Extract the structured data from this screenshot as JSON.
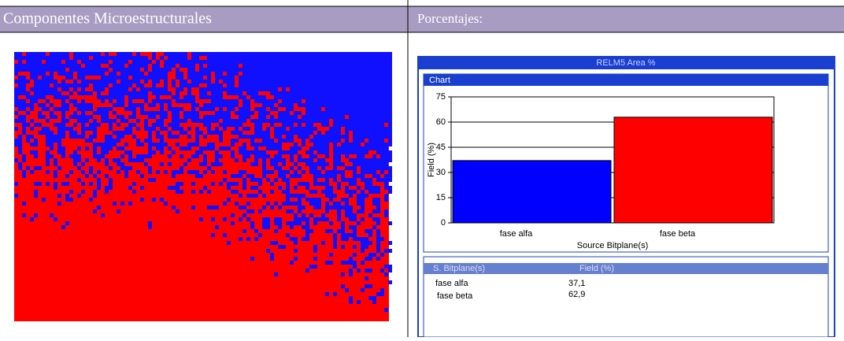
{
  "header": {
    "left": "Componentes Microestructurales",
    "right": "Porcentajes:"
  },
  "window": {
    "title": "RELM5 Area %",
    "panel": "Chart"
  },
  "chart_data": {
    "type": "bar",
    "categories": [
      "fase alfa",
      "fase beta"
    ],
    "values": [
      37.1,
      62.9
    ],
    "value_labels": [
      "37,1",
      "62,9"
    ],
    "colors": [
      "#0000ff",
      "#ff0000"
    ],
    "ylim": [
      0,
      75
    ],
    "yticks": [
      0,
      15,
      30,
      45,
      60,
      75
    ],
    "grid": true,
    "y_label": "Field (%)",
    "x_label": "Source Bitplane(s)"
  },
  "table": {
    "columns": [
      "S. Bitplane(s)",
      "Field (%)"
    ]
  }
}
